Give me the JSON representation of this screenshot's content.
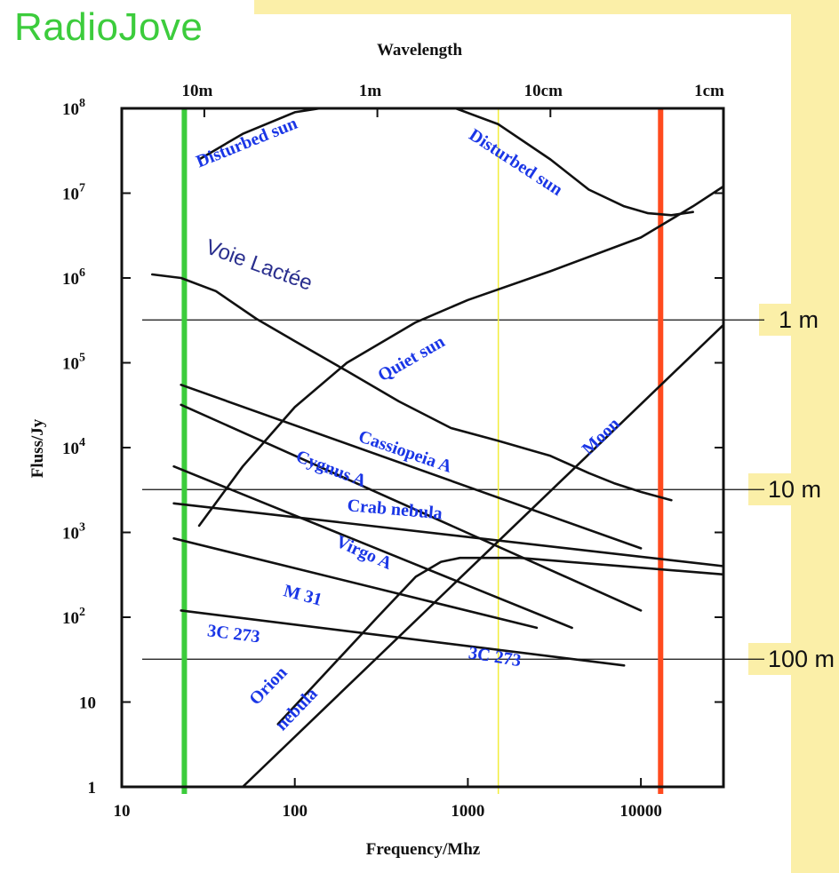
{
  "brand": "RadioJove",
  "colors": {
    "panel": "#fbefa8",
    "brand": "#3ccc3c",
    "source_label": "#1a36e6",
    "green_marker": "#3ccc3c",
    "red_marker": "#ff4a1e",
    "yellow_marker": "#f2ee3c"
  },
  "side_tags": [
    {
      "label": "1 m",
      "at_flux": 320000
    },
    {
      "label": "10 m",
      "at_flux": 3200
    },
    {
      "label": "100 m",
      "at_flux": 32
    }
  ],
  "chart_data": {
    "type": "line",
    "xlabel": "Frequency/Mhz",
    "ylabel": "Fluss/Jy",
    "top_axis_title": "Wavelength",
    "x_scale": "log",
    "y_scale": "log",
    "xlim": [
      10,
      30000
    ],
    "ylim": [
      1,
      100000000
    ],
    "x_ticks": [
      {
        "value": 10,
        "label": "10"
      },
      {
        "value": 100,
        "label": "100"
      },
      {
        "value": 1000,
        "label": "1000"
      },
      {
        "value": 10000,
        "label": "10000"
      }
    ],
    "y_ticks": [
      {
        "value": 1,
        "label": "1",
        "exp": ""
      },
      {
        "value": 10,
        "label": "10",
        "exp": ""
      },
      {
        "value": 100,
        "label": "10",
        "exp": "2"
      },
      {
        "value": 1000,
        "label": "10",
        "exp": "3"
      },
      {
        "value": 10000,
        "label": "10",
        "exp": "4"
      },
      {
        "value": 100000,
        "label": "10",
        "exp": "5"
      },
      {
        "value": 1000000,
        "label": "10",
        "exp": "6"
      },
      {
        "value": 10000000,
        "label": "10",
        "exp": "7"
      },
      {
        "value": 100000000,
        "label": "10",
        "exp": "8"
      }
    ],
    "top_ticks": [
      {
        "label": "10m",
        "freq": 30
      },
      {
        "label": "1m",
        "freq": 300
      },
      {
        "label": "10cm",
        "freq": 3000
      },
      {
        "label": "1cm",
        "freq": 30000
      }
    ],
    "markers": [
      {
        "freq": 23,
        "color": "#3ccc3c",
        "width": 6
      },
      {
        "freq": 13000,
        "color": "#ff4a1e",
        "width": 6
      },
      {
        "freq": 1500,
        "color": "#f2ee3c",
        "width": 1.5
      }
    ],
    "series": [
      {
        "points": [
          [
            28,
            25000000
          ],
          [
            50,
            50000000
          ],
          [
            100,
            90000000
          ],
          [
            140,
            100000000
          ]
        ]
      },
      {
        "points": [
          [
            850,
            100000000
          ],
          [
            1500,
            65000000
          ],
          [
            3000,
            25000000
          ],
          [
            5000,
            11000000
          ],
          [
            8000,
            7000000
          ],
          [
            11000,
            5800000
          ],
          [
            15000,
            5500000
          ],
          [
            20000,
            6000000
          ]
        ]
      },
      {
        "points": [
          [
            28,
            1200
          ],
          [
            50,
            6000
          ],
          [
            100,
            30000
          ],
          [
            200,
            100000
          ],
          [
            500,
            300000
          ],
          [
            1000,
            550000
          ],
          [
            3000,
            1200000
          ],
          [
            10000,
            3000000
          ],
          [
            20000,
            7000000
          ],
          [
            30000,
            12000000
          ]
        ]
      },
      {
        "points": [
          [
            15,
            1100000
          ],
          [
            22,
            1000000
          ],
          [
            35,
            700000
          ],
          [
            60,
            330000
          ],
          [
            100,
            180000
          ],
          [
            200,
            80000
          ],
          [
            400,
            35000
          ],
          [
            800,
            17000
          ],
          [
            1500,
            12000
          ],
          [
            3000,
            8000
          ],
          [
            5000,
            5000
          ],
          [
            7000,
            3800
          ],
          [
            10000,
            3000
          ],
          [
            15000,
            2400
          ]
        ]
      },
      {
        "points": [
          [
            22,
            55000
          ],
          [
            10000,
            650
          ]
        ]
      },
      {
        "points": [
          [
            22,
            32000
          ],
          [
            10000,
            120
          ]
        ]
      },
      {
        "points": [
          [
            20,
            2200
          ],
          [
            30000,
            400
          ]
        ]
      },
      {
        "points": [
          [
            20,
            6000
          ],
          [
            4000,
            75
          ]
        ]
      },
      {
        "points": [
          [
            20,
            850
          ],
          [
            2500,
            75
          ]
        ]
      },
      {
        "points": [
          [
            22,
            120
          ],
          [
            8000,
            27
          ]
        ]
      },
      {
        "points": [
          [
            50,
            1
          ],
          [
            30000,
            280000
          ]
        ]
      },
      {
        "points": [
          [
            80,
            5.5
          ],
          [
            300,
            100
          ],
          [
            500,
            300
          ],
          [
            700,
            450
          ],
          [
            900,
            500
          ],
          [
            2000,
            500
          ],
          [
            30000,
            320
          ]
        ]
      }
    ],
    "labels": [
      {
        "text": "Disturbed sun",
        "freq": 28,
        "flux": 20000000,
        "rotate": -22,
        "style": "source"
      },
      {
        "text": "Disturbed sun",
        "freq": 1000,
        "flux": 45000000,
        "rotate": 33,
        "style": "source"
      },
      {
        "text": "Voie Lactée",
        "freq": 30,
        "flux": 2000000,
        "rotate": 20,
        "style": "milkyway"
      },
      {
        "text": "Quiet sun",
        "freq": 320,
        "flux": 60000,
        "rotate": -30,
        "style": "source"
      },
      {
        "text": "Moon",
        "freq": 5000,
        "flux": 8000,
        "rotate": -44,
        "style": "source"
      },
      {
        "text": "Cassiopeia A",
        "freq": 230,
        "flux": 12000,
        "rotate": 19,
        "style": "source"
      },
      {
        "text": "Cygnus A",
        "freq": 100,
        "flux": 7000,
        "rotate": 21,
        "style": "source"
      },
      {
        "text": "Crab nebula",
        "freq": 200,
        "flux": 1800,
        "rotate": 5,
        "style": "source"
      },
      {
        "text": "Virgo A",
        "freq": 170,
        "flux": 700,
        "rotate": 24,
        "style": "source"
      },
      {
        "text": "M 31",
        "freq": 85,
        "flux": 180,
        "rotate": 15,
        "style": "source"
      },
      {
        "text": "3C 273",
        "freq": 31,
        "flux": 60,
        "rotate": 7,
        "style": "source"
      },
      {
        "text": "3C 273",
        "freq": 1000,
        "flux": 33,
        "rotate": 9,
        "style": "source"
      },
      {
        "text": "Orion",
        "freq": 60,
        "flux": 9,
        "rotate": -46,
        "style": "source"
      },
      {
        "text": "nebula",
        "freq": 85,
        "flux": 4.5,
        "rotate": -46,
        "style": "source"
      }
    ]
  }
}
